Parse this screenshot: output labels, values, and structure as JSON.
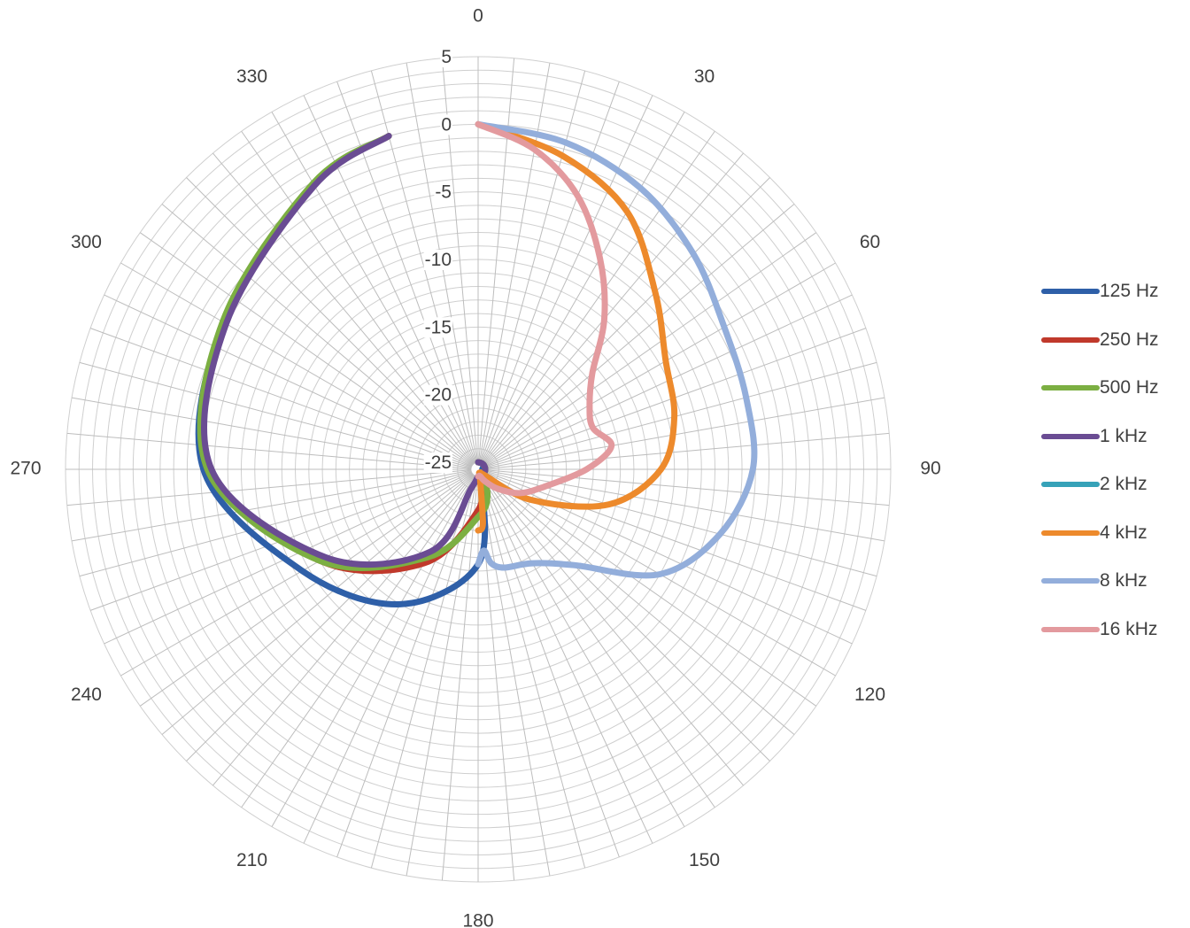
{
  "chart_data": {
    "type": "polar-line",
    "angular_axis": {
      "labels": [
        "0",
        "30",
        "60",
        "90",
        "120",
        "150",
        "180",
        "210",
        "240",
        "270",
        "300",
        "330"
      ],
      "direction": "clockwise",
      "zero_at": "top",
      "grid_step_deg": 5
    },
    "radial_axis": {
      "range": [
        -25,
        5
      ],
      "tick_labels": [
        "5",
        "0",
        "-5",
        "-10",
        "-15",
        "-20",
        "-25"
      ],
      "minor_step": 1
    },
    "grid": true,
    "legend_position": "right",
    "series": [
      {
        "name": "125 Hz",
        "color": "#2e5fa8",
        "angles": [
          0,
          30,
          60,
          90,
          120,
          150,
          180,
          210,
          240,
          270,
          300,
          330,
          345
        ],
        "values": [
          -25,
          -25,
          -25,
          -25,
          -25,
          -25,
          -18.5,
          -14,
          -10.5,
          -5.2,
          -3.8,
          -1.2,
          0
        ]
      },
      {
        "name": "250 Hz",
        "color": "#c0392b",
        "angles": [
          0,
          30,
          60,
          90,
          120,
          150,
          170,
          180,
          210,
          240,
          270,
          300,
          330,
          345
        ],
        "values": [
          -25,
          -25,
          -25,
          -25,
          -25,
          -25,
          -25,
          -22.5,
          -17.5,
          -12,
          -5.5,
          -3.8,
          -1.2,
          0
        ]
      },
      {
        "name": "500 Hz",
        "color": "#7caf42",
        "angles": [
          0,
          30,
          60,
          90,
          120,
          150,
          160,
          180,
          210,
          240,
          270,
          300,
          330,
          345
        ],
        "values": [
          -25,
          -25,
          -25,
          -25,
          -25,
          -25,
          -23.5,
          -22,
          -18,
          -12,
          -5.5,
          -3.7,
          -1.1,
          0
        ]
      },
      {
        "name": "1 kHz",
        "color": "#6a4c93",
        "angles": [
          0,
          30,
          60,
          90,
          120,
          150,
          180,
          200,
          210,
          240,
          270,
          300,
          330,
          345
        ],
        "values": [
          -25,
          -25,
          -25,
          -25,
          -25,
          -25,
          -25,
          -24,
          -18.5,
          -12.5,
          -5.8,
          -4.0,
          -1.3,
          0
        ]
      },
      {
        "name": "2 kHz",
        "color": "#36a2b8",
        "angles": [
          0,
          30,
          60,
          90,
          120,
          150,
          180
        ],
        "values": [
          -25,
          -25,
          -25,
          -25,
          -25,
          -25,
          -25
        ]
      },
      {
        "name": "4 kHz",
        "color": "#ed8a2c",
        "angles": [
          0,
          15,
          30,
          45,
          60,
          75,
          90,
          105,
          120,
          135,
          150,
          165,
          175,
          180
        ],
        "values": [
          0,
          -1.5,
          -3.5,
          -7,
          -9.5,
          -10.5,
          -12,
          -15.5,
          -21,
          -25,
          -25,
          -25,
          -21.5,
          -21
        ]
      },
      {
        "name": "8 kHz",
        "color": "#93aedb",
        "angles": [
          0,
          15,
          30,
          45,
          60,
          75,
          90,
          105,
          120,
          135,
          150,
          165,
          172,
          176,
          180
        ],
        "values": [
          0,
          -0.5,
          -1.5,
          -3,
          -4.5,
          -5,
          -5.2,
          -7,
          -10,
          -15.5,
          -17.5,
          -18,
          -18.5,
          -19.5,
          -18.5
        ]
      },
      {
        "name": "16 kHz",
        "color": "#e39a9e",
        "angles": [
          0,
          10,
          20,
          30,
          40,
          50,
          60,
          70,
          80,
          90,
          105,
          120,
          135,
          150,
          165,
          180
        ],
        "values": [
          0,
          -1.5,
          -4,
          -7.5,
          -11,
          -14.5,
          -16,
          -16.5,
          -15.5,
          -17.5,
          -20.5,
          -22,
          -23.5,
          -24.5,
          -25,
          -25
        ]
      }
    ]
  }
}
